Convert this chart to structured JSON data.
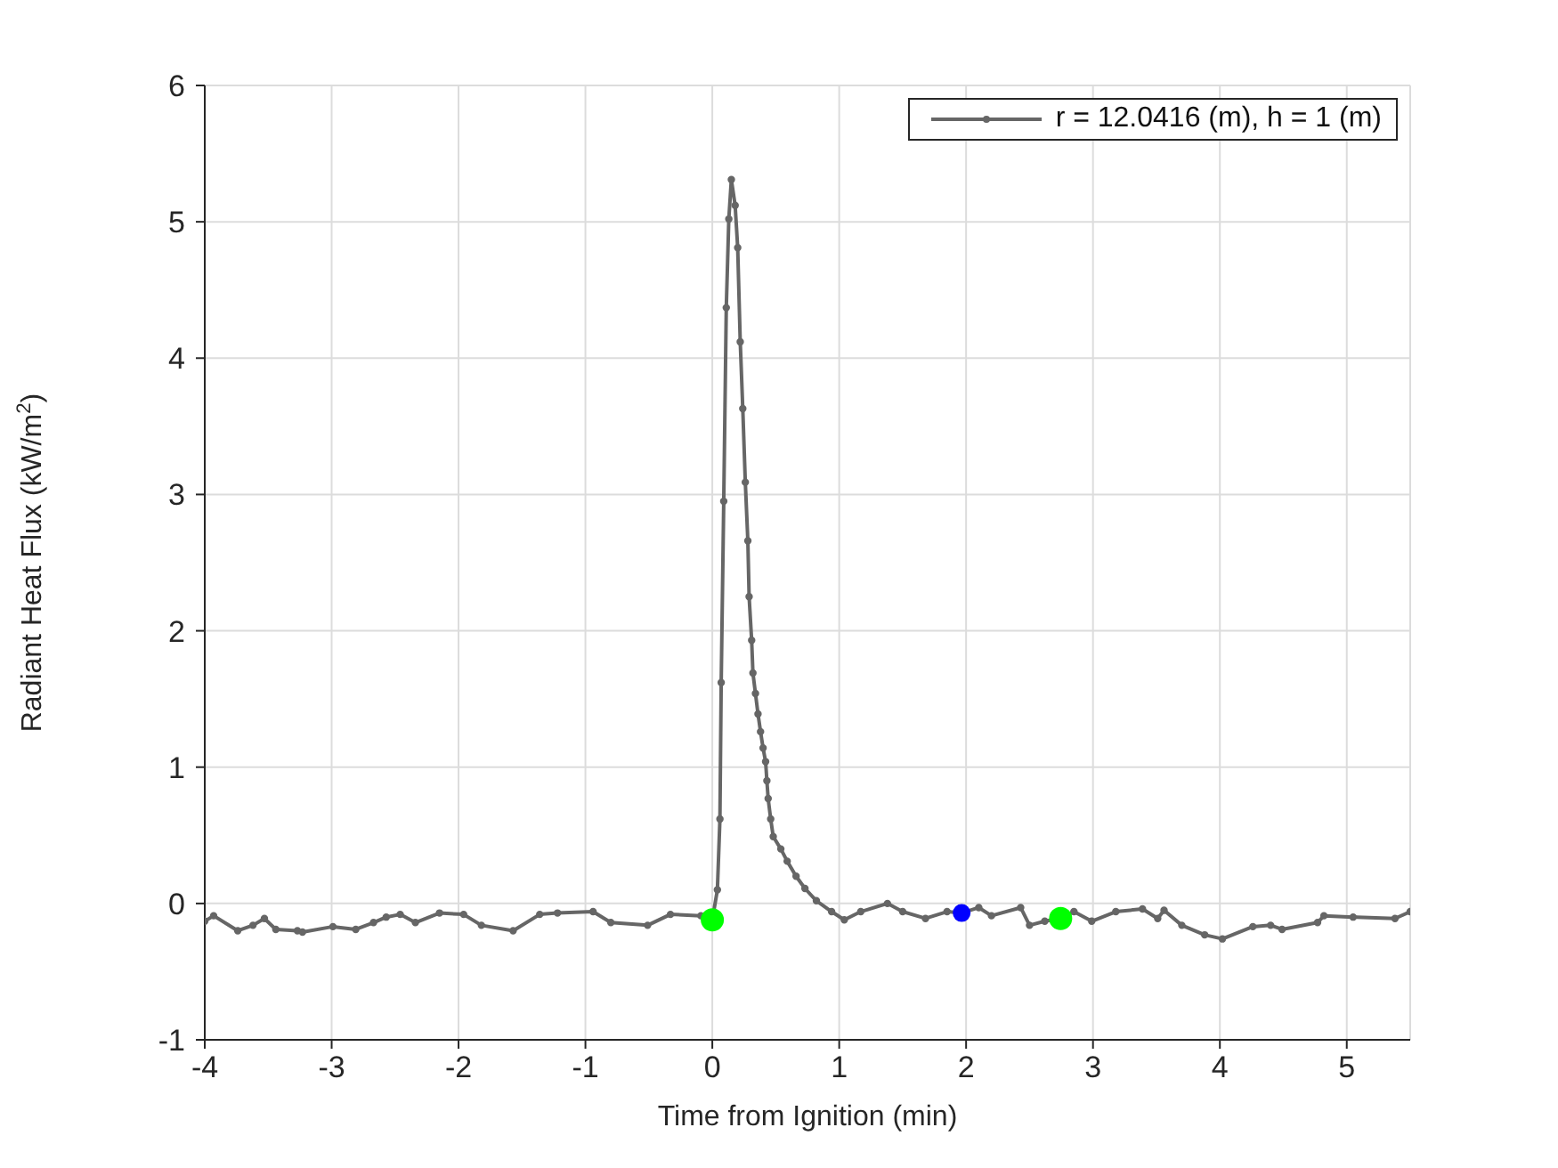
{
  "chart_data": {
    "type": "line",
    "xlabel": "Time from Ignition (min)",
    "ylabel": "Radiant Heat Flux (kW/m$^{2}$)",
    "xlim": [
      -4,
      5.5
    ],
    "ylim": [
      -1,
      6
    ],
    "xticks": [
      -4,
      -3,
      -2,
      -1,
      0,
      1,
      2,
      3,
      4,
      5
    ],
    "yticks": [
      -1,
      0,
      1,
      2,
      3,
      4,
      5,
      6
    ],
    "grid": true,
    "legend": "top right",
    "marker": "circle",
    "line_style": "solid",
    "series": [
      {
        "name": "r = 12.0416 (m), h = 1 (m)",
        "color": "#666666",
        "x": [
          -4.0,
          -3.93,
          -3.74,
          -3.62,
          -3.53,
          -3.44,
          -3.27,
          -3.23,
          -2.99,
          -2.81,
          -2.67,
          -2.57,
          -2.46,
          -2.34,
          -2.15,
          -1.96,
          -1.82,
          -1.57,
          -1.36,
          -1.22,
          -0.94,
          -0.8,
          -0.51,
          -0.33,
          -0.09,
          0.0,
          0.04,
          0.06,
          0.07,
          0.09,
          0.11,
          0.13,
          0.15,
          0.18,
          0.2,
          0.22,
          0.24,
          0.26,
          0.28,
          0.29,
          0.31,
          0.32,
          0.34,
          0.36,
          0.38,
          0.4,
          0.42,
          0.43,
          0.44,
          0.46,
          0.48,
          0.54,
          0.59,
          0.66,
          0.73,
          0.82,
          0.94,
          1.04,
          1.17,
          1.38,
          1.5,
          1.68,
          1.85,
          1.965,
          2.1,
          2.2,
          2.43,
          2.5,
          2.62,
          2.745,
          2.85,
          2.99,
          3.18,
          3.39,
          3.51,
          3.56,
          3.7,
          3.88,
          4.02,
          4.26,
          4.4,
          4.49,
          4.77,
          4.82,
          5.05,
          5.38,
          5.5
        ],
        "values": [
          -0.13,
          -0.09,
          -0.2,
          -0.16,
          -0.11,
          -0.19,
          -0.2,
          -0.21,
          -0.17,
          -0.19,
          -0.14,
          -0.1,
          -0.08,
          -0.14,
          -0.07,
          -0.08,
          -0.16,
          -0.2,
          -0.08,
          -0.07,
          -0.06,
          -0.14,
          -0.16,
          -0.08,
          -0.09,
          -0.12,
          0.1,
          0.62,
          1.62,
          2.95,
          4.37,
          5.02,
          5.31,
          5.12,
          4.81,
          4.12,
          3.63,
          3.09,
          2.66,
          2.25,
          1.93,
          1.69,
          1.54,
          1.39,
          1.26,
          1.14,
          1.04,
          0.9,
          0.77,
          0.62,
          0.49,
          0.4,
          0.31,
          0.2,
          0.11,
          0.02,
          -0.06,
          -0.12,
          -0.06,
          0.0,
          -0.06,
          -0.11,
          -0.06,
          -0.07,
          -0.03,
          -0.09,
          -0.03,
          -0.16,
          -0.13,
          -0.11,
          -0.06,
          -0.13,
          -0.06,
          -0.04,
          -0.11,
          -0.05,
          -0.16,
          -0.23,
          -0.26,
          -0.17,
          -0.16,
          -0.19,
          -0.14,
          -0.09,
          -0.1,
          -0.11,
          -0.06
        ]
      },
      {
        "type": "scatter",
        "color": "#00ff00",
        "x": [
          0.0,
          2.745
        ],
        "values": [
          -0.12,
          -0.11
        ]
      },
      {
        "type": "scatter",
        "color": "#0000ff",
        "x": [
          1.965
        ],
        "values": [
          -0.07
        ]
      }
    ]
  }
}
